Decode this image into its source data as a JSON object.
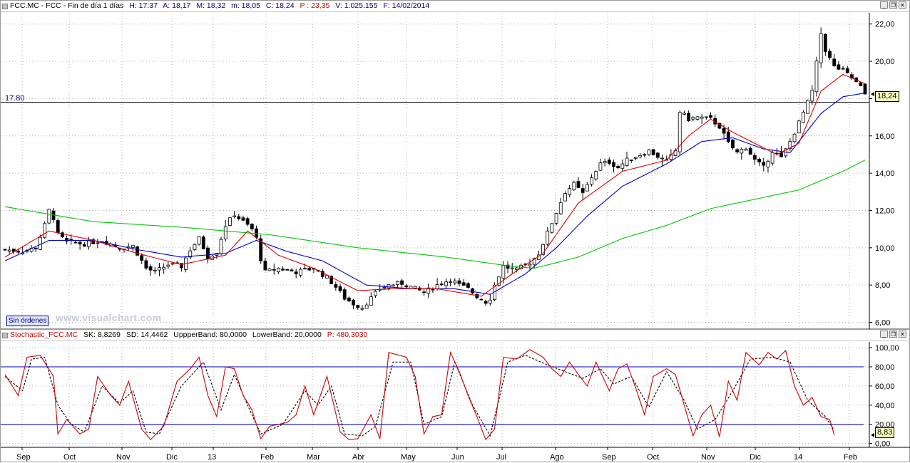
{
  "price_pane": {
    "info": {
      "symbol": "FCC.MC - FCC - Fin de día 1 días",
      "hour": "H: 17:37",
      "open": "A: 18,17",
      "high": "M: 18,32",
      "low": "m: 18,05",
      "close": "C: 18,24",
      "change": "P : 23,35",
      "volume": "V: 1.025.155",
      "date": "F: 14/02/2014"
    },
    "orders_button": "Sin órdenes",
    "brand": "www.visualchart.com",
    "hline_label": "17.80",
    "last_price": "18,24"
  },
  "stoch_pane": {
    "info": {
      "name": "Stochastic_FCC.MC",
      "sk": "SK: 8,8269",
      "sd": "SD: 14,4462",
      "upper": "UppperBand: 80,0000",
      "lower": "LowerBand: 20,0000",
      "p": "P: 480,3030"
    },
    "last_value": "8,83"
  },
  "colors": {
    "candle": "#000000",
    "ma_short": "#e00000",
    "ma_mid": "#0000d0",
    "ma_long": "#00c800",
    "stoch_k": "#d00000",
    "stoch_d": "#000000",
    "bands": "#0000c0"
  },
  "chart_data": [
    {
      "type": "line",
      "title": "FCC.MC - FCC - Fin de día 1 días",
      "x_ticks": [
        "Sep",
        "Oct",
        "Nov",
        "Dic",
        "13",
        "Feb",
        "Mar",
        "Abr",
        "May",
        "Jun",
        "Jul",
        "Ago",
        "Sep",
        "Oct",
        "Nov",
        "Dic",
        "14",
        "Feb"
      ],
      "y_ticks": [
        "6,00",
        "8,00",
        "10,00",
        "12,00",
        "14,00",
        "16,00",
        "18,00",
        "20,00",
        "22,00"
      ],
      "ylim": [
        5.6,
        22.6
      ],
      "horizontal_line": 17.8,
      "close_path": [
        [
          0,
          9.9
        ],
        [
          4,
          9.8
        ],
        [
          7,
          10.0
        ],
        [
          9,
          11.2
        ],
        [
          10,
          12.0
        ],
        [
          11,
          11.6
        ],
        [
          12,
          10.7
        ],
        [
          14,
          10.3
        ],
        [
          18,
          10.2
        ],
        [
          22,
          10.4
        ],
        [
          26,
          10.0
        ],
        [
          29,
          10.1
        ],
        [
          32,
          8.9
        ],
        [
          34,
          8.7
        ],
        [
          37,
          9.1
        ],
        [
          40,
          9.0
        ],
        [
          42,
          9.9
        ],
        [
          44,
          10.5
        ],
        [
          46,
          9.5
        ],
        [
          48,
          9.8
        ],
        [
          50,
          11.2
        ],
        [
          52,
          11.8
        ],
        [
          54,
          11.4
        ],
        [
          56,
          11.0
        ],
        [
          57,
          10.5
        ],
        [
          58,
          9.4
        ],
        [
          59,
          8.7
        ],
        [
          62,
          8.9
        ],
        [
          66,
          8.7
        ],
        [
          70,
          8.9
        ],
        [
          73,
          8.4
        ],
        [
          75,
          7.9
        ],
        [
          77,
          7.3
        ],
        [
          79,
          7.0
        ],
        [
          81,
          6.8
        ],
        [
          83,
          7.3
        ],
        [
          85,
          7.8
        ],
        [
          87,
          8.0
        ],
        [
          90,
          8.1
        ],
        [
          93,
          7.8
        ],
        [
          95,
          7.6
        ],
        [
          98,
          8.0
        ],
        [
          101,
          8.3
        ],
        [
          103,
          8.0
        ],
        [
          105,
          7.8
        ],
        [
          107,
          7.4
        ],
        [
          109,
          7.1
        ],
        [
          110,
          7.3
        ],
        [
          111,
          8.0
        ],
        [
          113,
          9.0
        ],
        [
          116,
          8.8
        ],
        [
          119,
          9.2
        ],
        [
          121,
          9.7
        ],
        [
          123,
          10.8
        ],
        [
          125,
          11.9
        ],
        [
          127,
          13.0
        ],
        [
          129,
          13.4
        ],
        [
          131,
          12.9
        ],
        [
          133,
          13.8
        ],
        [
          135,
          14.5
        ],
        [
          137,
          14.6
        ],
        [
          139,
          14.3
        ],
        [
          141,
          14.7
        ],
        [
          144,
          15.0
        ],
        [
          146,
          15.2
        ],
        [
          148,
          14.9
        ],
        [
          150,
          14.6
        ],
        [
          152,
          15.2
        ],
        [
          153,
          17.3
        ],
        [
          155,
          16.9
        ],
        [
          157,
          17.0
        ],
        [
          160,
          16.9
        ],
        [
          162,
          16.5
        ],
        [
          164,
          15.6
        ],
        [
          166,
          15.1
        ],
        [
          168,
          15.4
        ],
        [
          170,
          14.7
        ],
        [
          172,
          14.3
        ],
        [
          174,
          15.2
        ],
        [
          176,
          14.8
        ],
        [
          178,
          15.7
        ],
        [
          180,
          16.7
        ],
        [
          182,
          17.8
        ],
        [
          183,
          18.4
        ],
        [
          184,
          19.9
        ],
        [
          185,
          21.5
        ],
        [
          186,
          20.6
        ],
        [
          188,
          19.7
        ],
        [
          190,
          19.5
        ],
        [
          192,
          19.1
        ],
        [
          194,
          18.6
        ],
        [
          195,
          18.24
        ]
      ],
      "ma_short": [
        [
          0,
          9.5
        ],
        [
          10,
          10.9
        ],
        [
          20,
          10.4
        ],
        [
          30,
          9.7
        ],
        [
          40,
          9.1
        ],
        [
          50,
          9.6
        ],
        [
          55,
          10.9
        ],
        [
          62,
          9.6
        ],
        [
          70,
          8.9
        ],
        [
          80,
          7.7
        ],
        [
          88,
          7.8
        ],
        [
          98,
          7.8
        ],
        [
          108,
          7.4
        ],
        [
          115,
          8.6
        ],
        [
          122,
          9.7
        ],
        [
          130,
          12.4
        ],
        [
          140,
          14.1
        ],
        [
          150,
          14.7
        ],
        [
          155,
          16.0
        ],
        [
          160,
          16.9
        ],
        [
          165,
          16.2
        ],
        [
          170,
          15.6
        ],
        [
          175,
          15.0
        ],
        [
          180,
          15.6
        ],
        [
          185,
          18.4
        ],
        [
          190,
          19.3
        ],
        [
          195,
          18.8
        ]
      ],
      "ma_mid": [
        [
          0,
          9.3
        ],
        [
          10,
          10.4
        ],
        [
          20,
          10.4
        ],
        [
          30,
          9.9
        ],
        [
          40,
          9.5
        ],
        [
          50,
          9.7
        ],
        [
          57,
          10.4
        ],
        [
          64,
          9.8
        ],
        [
          72,
          9.3
        ],
        [
          82,
          8.0
        ],
        [
          92,
          7.8
        ],
        [
          102,
          7.8
        ],
        [
          110,
          7.5
        ],
        [
          118,
          8.6
        ],
        [
          125,
          10.0
        ],
        [
          132,
          11.7
        ],
        [
          140,
          13.3
        ],
        [
          150,
          14.5
        ],
        [
          158,
          15.7
        ],
        [
          165,
          15.9
        ],
        [
          172,
          15.3
        ],
        [
          178,
          15.1
        ],
        [
          185,
          17.2
        ],
        [
          190,
          18.1
        ],
        [
          195,
          18.3
        ]
      ],
      "ma_long": [
        [
          0,
          12.2
        ],
        [
          20,
          11.4
        ],
        [
          40,
          11.1
        ],
        [
          60,
          10.7
        ],
        [
          80,
          10.0
        ],
        [
          100,
          9.5
        ],
        [
          115,
          9.0
        ],
        [
          120,
          8.9
        ],
        [
          130,
          9.5
        ],
        [
          140,
          10.5
        ],
        [
          150,
          11.2
        ],
        [
          160,
          12.1
        ],
        [
          170,
          12.6
        ],
        [
          180,
          13.1
        ],
        [
          190,
          14.1
        ],
        [
          195,
          14.7
        ]
      ],
      "series": [
        {
          "name": "FCC.MC",
          "kind": "candles"
        },
        {
          "kind": "moving average"
        },
        {
          "kind": "moving average"
        },
        {
          "kind": "moving average"
        }
      ]
    },
    {
      "type": "line",
      "title": "Stochastic_FCC.MC",
      "y_ticks": [
        "0,00",
        "20,00",
        "40,00",
        "60,00",
        "80,00",
        "100,00"
      ],
      "ylim": [
        -4,
        106
      ],
      "bands": [
        80,
        20
      ],
      "series": [
        {
          "name": "SK",
          "values": [
            [
              0,
              72
            ],
            [
              3,
              50
            ],
            [
              5,
              90
            ],
            [
              8,
              92
            ],
            [
              11,
              70
            ],
            [
              12,
              10
            ],
            [
              14,
              25
            ],
            [
              17,
              10
            ],
            [
              19,
              15
            ],
            [
              21,
              70
            ],
            [
              24,
              50
            ],
            [
              26,
              40
            ],
            [
              28,
              65
            ],
            [
              31,
              15
            ],
            [
              33,
              4
            ],
            [
              36,
              18
            ],
            [
              39,
              65
            ],
            [
              42,
              78
            ],
            [
              44,
              90
            ],
            [
              46,
              50
            ],
            [
              48,
              28
            ],
            [
              50,
              80
            ],
            [
              52,
              78
            ],
            [
              54,
              50
            ],
            [
              56,
              35
            ],
            [
              58,
              5
            ],
            [
              60,
              18
            ],
            [
              64,
              22
            ],
            [
              66,
              30
            ],
            [
              68,
              60
            ],
            [
              70,
              30
            ],
            [
              73,
              70
            ],
            [
              76,
              12
            ],
            [
              78,
              4
            ],
            [
              80,
              5
            ],
            [
              83,
              30
            ],
            [
              85,
              5
            ],
            [
              87,
              95
            ],
            [
              91,
              90
            ],
            [
              93,
              70
            ],
            [
              95,
              10
            ],
            [
              97,
              28
            ],
            [
              99,
              30
            ],
            [
              101,
              95
            ],
            [
              103,
              75
            ],
            [
              105,
              50
            ],
            [
              107,
              28
            ],
            [
              109,
              4
            ],
            [
              111,
              15
            ],
            [
              113,
              90
            ],
            [
              116,
              88
            ],
            [
              119,
              98
            ],
            [
              122,
              90
            ],
            [
              124,
              78
            ],
            [
              126,
              70
            ],
            [
              128,
              85
            ],
            [
              130,
              72
            ],
            [
              132,
              60
            ],
            [
              134,
              85
            ],
            [
              137,
              55
            ],
            [
              139,
              78
            ],
            [
              141,
              83
            ],
            [
              143,
              58
            ],
            [
              145,
              30
            ],
            [
              147,
              70
            ],
            [
              150,
              78
            ],
            [
              152,
              72
            ],
            [
              154,
              40
            ],
            [
              156,
              8
            ],
            [
              158,
              30
            ],
            [
              160,
              40
            ],
            [
              162,
              7
            ],
            [
              164,
              65
            ],
            [
              166,
              45
            ],
            [
              168,
              95
            ],
            [
              171,
              82
            ],
            [
              173,
              95
            ],
            [
              175,
              88
            ],
            [
              177,
              97
            ],
            [
              179,
              60
            ],
            [
              181,
              40
            ],
            [
              183,
              48
            ],
            [
              185,
              28
            ],
            [
              187,
              25
            ],
            [
              188,
              8.83
            ]
          ]
        },
        {
          "name": "SD",
          "values": [
            [
              0,
              70
            ],
            [
              4,
              55
            ],
            [
              6,
              88
            ],
            [
              9,
              90
            ],
            [
              12,
              40
            ],
            [
              15,
              20
            ],
            [
              18,
              12
            ],
            [
              22,
              60
            ],
            [
              26,
              42
            ],
            [
              29,
              55
            ],
            [
              32,
              12
            ],
            [
              35,
              10
            ],
            [
              40,
              60
            ],
            [
              45,
              85
            ],
            [
              49,
              35
            ],
            [
              52,
              72
            ],
            [
              55,
              40
            ],
            [
              58,
              10
            ],
            [
              63,
              20
            ],
            [
              68,
              55
            ],
            [
              71,
              40
            ],
            [
              74,
              60
            ],
            [
              77,
              10
            ],
            [
              81,
              8
            ],
            [
              84,
              18
            ],
            [
              88,
              85
            ],
            [
              92,
              85
            ],
            [
              95,
              20
            ],
            [
              99,
              28
            ],
            [
              102,
              85
            ],
            [
              106,
              40
            ],
            [
              110,
              8
            ],
            [
              114,
              85
            ],
            [
              118,
              92
            ],
            [
              123,
              82
            ],
            [
              127,
              75
            ],
            [
              131,
              68
            ],
            [
              135,
              78
            ],
            [
              138,
              62
            ],
            [
              142,
              70
            ],
            [
              146,
              38
            ],
            [
              150,
              75
            ],
            [
              154,
              45
            ],
            [
              157,
              15
            ],
            [
              161,
              25
            ],
            [
              165,
              55
            ],
            [
              169,
              88
            ],
            [
              174,
              90
            ],
            [
              178,
              85
            ],
            [
              182,
              45
            ],
            [
              186,
              28
            ],
            [
              188,
              14
            ]
          ]
        }
      ]
    }
  ]
}
